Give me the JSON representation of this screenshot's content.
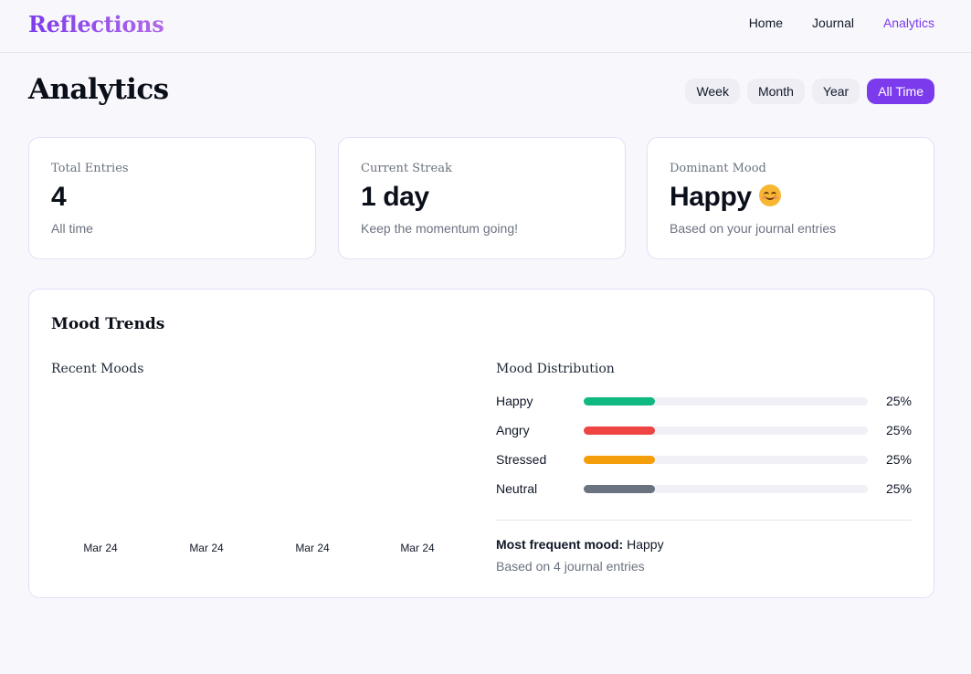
{
  "brand": "Reflections",
  "nav": {
    "home": "Home",
    "journal": "Journal",
    "analytics": "Analytics"
  },
  "page": {
    "title": "Analytics"
  },
  "ranges": {
    "week": "Week",
    "month": "Month",
    "year": "Year",
    "all_time": "All Time",
    "selected": "All Time"
  },
  "stats": {
    "total": {
      "label": "Total Entries",
      "value": "4",
      "sub": "All time"
    },
    "streak": {
      "label": "Current Streak",
      "value": "1 day",
      "sub": "Keep the momentum going!"
    },
    "mood": {
      "label": "Dominant Mood",
      "value": "Happy",
      "sub": "Based on your journal entries",
      "icon": "smiling-face-icon"
    }
  },
  "trends": {
    "title": "Mood Trends",
    "recent_title": "Recent Moods",
    "dates": [
      "Mar 24",
      "Mar 24",
      "Mar 24",
      "Mar 24"
    ],
    "distribution_title": "Mood Distribution",
    "distribution": [
      {
        "label": "Happy",
        "percent": 25,
        "pct_text": "25%",
        "color": "#10b981"
      },
      {
        "label": "Angry",
        "percent": 25,
        "pct_text": "25%",
        "color": "#ef4444"
      },
      {
        "label": "Stressed",
        "percent": 25,
        "pct_text": "25%",
        "color": "#f59e0b"
      },
      {
        "label": "Neutral",
        "percent": 25,
        "pct_text": "25%",
        "color": "#6b7280"
      }
    ],
    "frequent_label": "Most frequent mood:",
    "frequent_value": "Happy",
    "based_on": "Based on 4 journal entries"
  },
  "colors": {
    "accent": "#7c3aed",
    "background": "#f8f8fc",
    "card_border": "#e2defa"
  }
}
